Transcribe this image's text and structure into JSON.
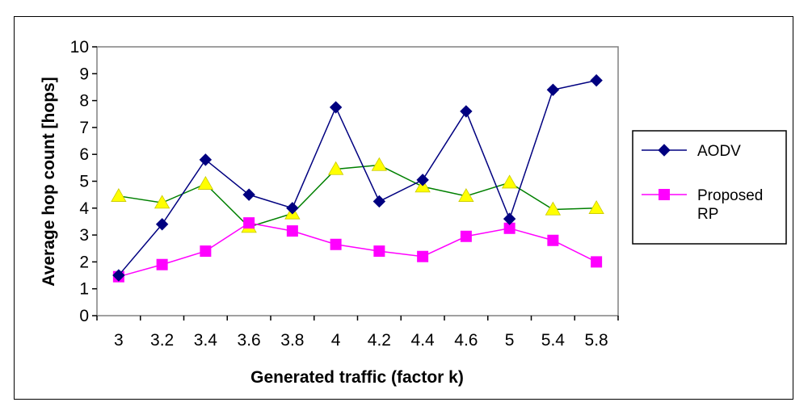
{
  "chart_data": {
    "type": "line",
    "title": "",
    "xlabel": "Generated traffic (factor k)",
    "ylabel": "Average hop count [hops]",
    "categories": [
      "3",
      "3.2",
      "3.4",
      "3.6",
      "3.8",
      "4",
      "4.2",
      "4.4",
      "4.6",
      "5",
      "5.4",
      "5.8"
    ],
    "ylim": [
      0,
      10
    ],
    "yticks": [
      "0",
      "1",
      "2",
      "3",
      "4",
      "5",
      "6",
      "7",
      "8",
      "9",
      "10"
    ],
    "grid": false,
    "legend_position": "right",
    "series": [
      {
        "name": "AODV",
        "color": "#000080",
        "marker": "diamond",
        "in_legend": true,
        "values": [
          1.5,
          3.4,
          5.8,
          4.5,
          4.0,
          7.75,
          4.25,
          5.05,
          7.6,
          3.6,
          8.4,
          8.75
        ]
      },
      {
        "name": "Proposed RP",
        "legend_lines": [
          "Proposed",
          "RP"
        ],
        "color": "#ff00ff",
        "marker": "square",
        "in_legend": true,
        "values": [
          1.45,
          1.9,
          2.4,
          3.45,
          3.15,
          2.65,
          2.4,
          2.2,
          2.95,
          3.25,
          2.8,
          2.0
        ]
      },
      {
        "name": "",
        "color": "#ffff00",
        "line_color": "#008000",
        "marker": "triangle",
        "in_legend": false,
        "values": [
          4.45,
          4.2,
          4.9,
          3.3,
          3.8,
          5.45,
          5.6,
          4.8,
          4.45,
          4.95,
          3.95,
          4.0
        ]
      }
    ]
  }
}
